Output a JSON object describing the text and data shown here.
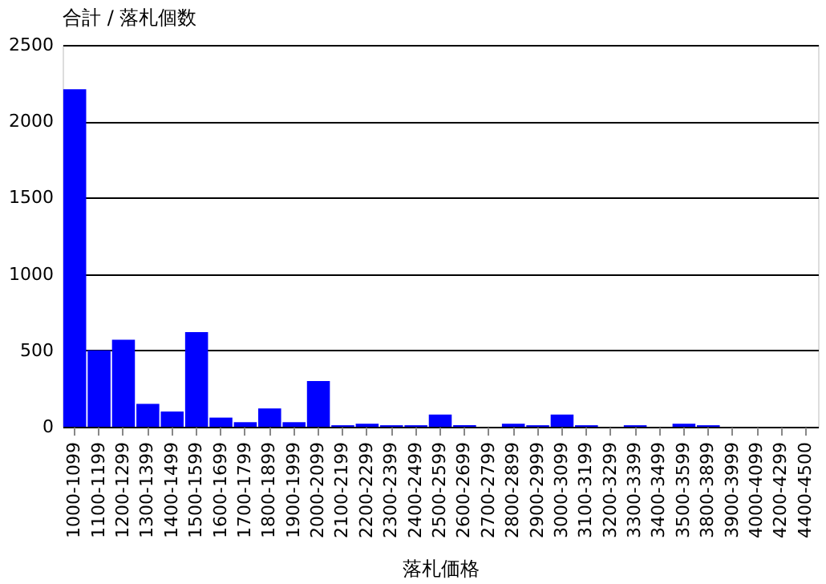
{
  "chart_data": {
    "type": "bar",
    "title": "合計 / 落札個数",
    "xlabel": "落札価格",
    "categories": [
      "1000-1099",
      "1100-1199",
      "1200-1299",
      "1300-1399",
      "1400-1499",
      "1500-1599",
      "1600-1699",
      "1700-1799",
      "1800-1899",
      "1900-1999",
      "2000-2099",
      "2100-2199",
      "2200-2299",
      "2300-2399",
      "2400-2499",
      "2500-2599",
      "2600-2699",
      "2700-2799",
      "2800-2899",
      "2900-2999",
      "3000-3099",
      "3100-3199",
      "3200-3299",
      "3300-3399",
      "3400-3499",
      "3500-3599",
      "3800-3899",
      "3900-3999",
      "4000-4099",
      "4200-4299",
      "4400-4500"
    ],
    "values": [
      2210,
      500,
      570,
      150,
      100,
      620,
      60,
      30,
      120,
      30,
      300,
      10,
      20,
      10,
      10,
      80,
      10,
      0,
      20,
      10,
      80,
      10,
      0,
      10,
      0,
      20,
      10,
      0,
      0,
      0,
      0
    ],
    "color": "#0000ff",
    "ylim": [
      0,
      2500
    ],
    "yticks": [
      0,
      500,
      1000,
      1500,
      2000,
      2500
    ],
    "grid": "y"
  }
}
